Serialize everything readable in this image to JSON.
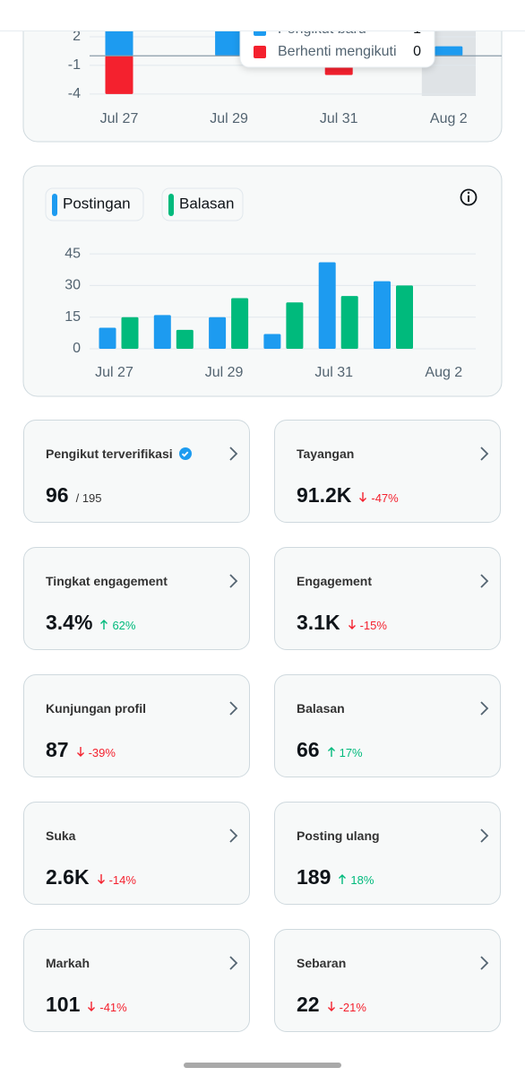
{
  "chart_data": [
    {
      "type": "bar",
      "categories": [
        "Jul 27",
        null,
        "Jul 29",
        null,
        "Jul 31",
        null,
        "Aug 2"
      ],
      "series": [
        {
          "name": "Pengikut baru",
          "color": "#1d9bf0",
          "values": [
            3,
            0,
            3,
            0,
            0,
            0,
            1
          ]
        },
        {
          "name": "Berhenti mengikuti",
          "color": "#f4212e",
          "values": [
            -4,
            0,
            0,
            0,
            -2,
            0,
            0
          ]
        }
      ],
      "ylim": [
        -4.6,
        3
      ],
      "yticks": [
        -4,
        -1,
        2
      ],
      "grid": true,
      "tooltip_index": 6
    },
    {
      "type": "bar",
      "categories": [
        "Jul 27",
        null,
        "Jul 29",
        null,
        "Jul 31",
        null,
        "Aug 2"
      ],
      "series": [
        {
          "name": "Postingan",
          "color": "#1d9bf0",
          "values": [
            10,
            16,
            15,
            7,
            41,
            32,
            0
          ]
        },
        {
          "name": "Balasan",
          "color": "#00ba7c",
          "values": [
            15,
            9,
            24,
            22,
            25,
            30,
            0
          ]
        }
      ],
      "ylim": [
        0,
        48
      ],
      "yticks": [
        0,
        15,
        30,
        45
      ],
      "grid": true
    }
  ],
  "cards": [
    {
      "title": "Pengikut terverifikasi",
      "value": "96",
      "total": "/ 195",
      "verified": true
    },
    {
      "title": "Tayangan",
      "value": "91.2K",
      "change": "-47%",
      "trend": "down"
    },
    {
      "title": "Tingkat engagement",
      "value": "3.4%",
      "change": "62%",
      "trend": "up"
    },
    {
      "title": "Engagement",
      "value": "3.1K",
      "change": "-15%",
      "trend": "down"
    },
    {
      "title": "Kunjungan profil",
      "value": "87",
      "change": "-39%",
      "trend": "down"
    },
    {
      "title": "Balasan",
      "value": "66",
      "change": "17%",
      "trend": "up"
    },
    {
      "title": "Suka",
      "value": "2.6K",
      "change": "-14%",
      "trend": "down"
    },
    {
      "title": "Posting ulang",
      "value": "189",
      "change": "18%",
      "trend": "up"
    },
    {
      "title": "Markah",
      "value": "101",
      "change": "-41%",
      "trend": "down"
    },
    {
      "title": "Sebaran",
      "value": "22",
      "change": "-21%",
      "trend": "down"
    }
  ]
}
